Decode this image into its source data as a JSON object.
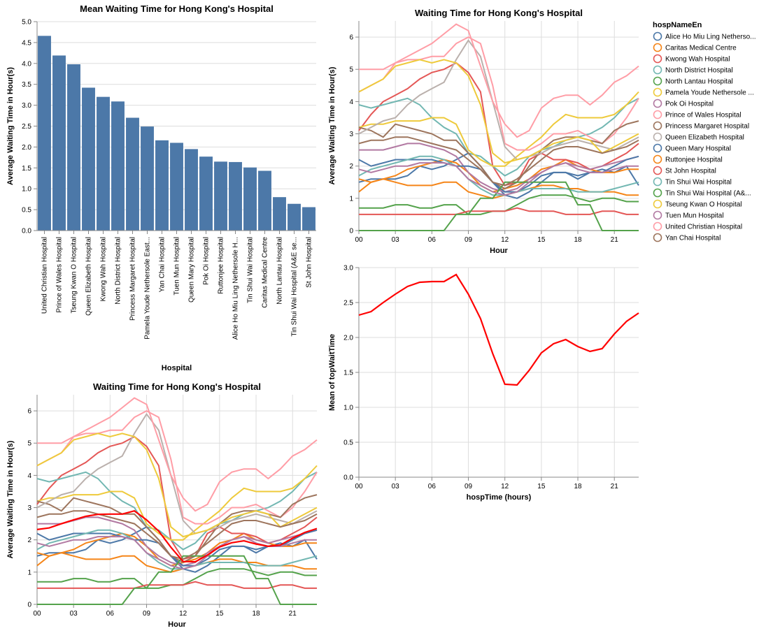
{
  "hospitals": [
    {
      "name": "Alice Ho Miu Ling Netherso...",
      "color": "#4c78a8"
    },
    {
      "name": "Caritas Medical Centre",
      "color": "#f58518"
    },
    {
      "name": "Kwong Wah Hospital",
      "color": "#e45756"
    },
    {
      "name": "North District Hospital",
      "color": "#72b7b2"
    },
    {
      "name": "North Lantau Hospital",
      "color": "#54a24b"
    },
    {
      "name": "Pamela Youde Nethersole ...",
      "color": "#eeca3b"
    },
    {
      "name": "Pok Oi Hospital",
      "color": "#b279a2"
    },
    {
      "name": "Prince of Wales Hospital",
      "color": "#ff9da6"
    },
    {
      "name": "Princess Margaret Hospital",
      "color": "#9d755d"
    },
    {
      "name": "Queen Elizabeth Hospital",
      "color": "#bab0ac"
    },
    {
      "name": "Queen Mary Hospital",
      "color": "#4c78a8"
    },
    {
      "name": "Ruttonjee Hospital",
      "color": "#f58518"
    },
    {
      "name": "St John Hospital",
      "color": "#e45756"
    },
    {
      "name": "Tin Shui Wai Hospital",
      "color": "#72b7b2"
    },
    {
      "name": "Tin Shui Wai Hospital   (A&...",
      "color": "#54a24b"
    },
    {
      "name": "Tseung Kwan O Hospital",
      "color": "#eeca3b"
    },
    {
      "name": "Tuen Mun Hospital",
      "color": "#b279a2"
    },
    {
      "name": "United Christian Hospital",
      "color": "#ff9da6"
    },
    {
      "name": "Yan Chai Hospital",
      "color": "#9d755d"
    }
  ],
  "legend_title": "hospNameEn",
  "mean_line_color": "#ff0000",
  "bar_color": "#4c78a8",
  "chart_data": [
    {
      "type": "bar",
      "title": "Mean Waiting Time for Hong Kong's Hospital",
      "xlabel": "Hospital",
      "ylabel": "Average Waiting Time in Hour(s)",
      "ylim": [
        0,
        5
      ],
      "yticks": [
        "0.0",
        "0.5",
        "1.0",
        "1.5",
        "2.0",
        "2.5",
        "3.0",
        "3.5",
        "4.0",
        "4.5",
        "5.0"
      ],
      "categories": [
        "United Christian Hospital",
        "Prince of Wales Hospital",
        "Tseung Kwan O Hospital",
        "Queen Elizabeth Hospital",
        "Kwong Wah Hospital",
        "North District Hospital",
        "Princess Margaret Hospital",
        "Pamela Youde Nethersole East...",
        "Yan Chai Hospital",
        "Tuen Mun Hospital",
        "Queen Mary Hospital",
        "Pok Oi Hospital",
        "Ruttonjee Hospital",
        "Alice Ho Miu Ling Nethersole H...",
        "Tin Shui Wai Hospital",
        "Caritas Medical Centre",
        "North Lantau Hospital",
        "Tin Shui Wai Hospital   (A&E se...",
        "St John Hospital"
      ],
      "values": [
        4.66,
        4.19,
        3.98,
        3.42,
        3.2,
        3.09,
        2.7,
        2.49,
        2.16,
        2.1,
        1.95,
        1.77,
        1.65,
        1.64,
        1.51,
        1.43,
        0.8,
        0.64,
        0.56
      ]
    },
    {
      "type": "line",
      "title": "Waiting Time for Hong Kong's Hospital",
      "xlabel": "Hour",
      "ylabel": "Average Waiting Time in Hour(s)",
      "xlim": [
        0,
        23
      ],
      "ylim": [
        0,
        6.5
      ],
      "xticks": [
        "00",
        "03",
        "06",
        "09",
        "12",
        "15",
        "18",
        "21"
      ],
      "yticks": [
        "0",
        "1",
        "2",
        "3",
        "4",
        "5",
        "6"
      ],
      "legend": "right",
      "x": [
        0,
        1,
        2,
        3,
        4,
        5,
        6,
        7,
        8,
        9,
        10,
        11,
        12,
        13,
        14,
        15,
        16,
        17,
        18,
        19,
        20,
        21,
        22,
        23
      ],
      "series": [
        {
          "name": "Alice Ho Miu Ling Netherso...",
          "values": [
            1.5,
            1.6,
            1.6,
            1.6,
            1.7,
            2.0,
            1.9,
            2.0,
            2.2,
            2.4,
            2.0,
            1.5,
            1.1,
            1.0,
            1.2,
            1.5,
            1.8,
            1.8,
            1.6,
            1.8,
            1.9,
            1.8,
            2.0,
            1.4
          ]
        },
        {
          "name": "Caritas Medical Centre",
          "values": [
            1.6,
            1.5,
            1.6,
            1.7,
            1.9,
            2.0,
            2.1,
            2.2,
            2.1,
            1.8,
            1.4,
            1.2,
            1.3,
            1.4,
            1.6,
            1.9,
            2.0,
            2.2,
            2.0,
            1.9,
            1.8,
            1.8,
            1.9,
            1.9
          ]
        },
        {
          "name": "Kwong Wah Hospital",
          "values": [
            3.1,
            3.6,
            4.0,
            4.2,
            4.4,
            4.7,
            4.9,
            5.0,
            5.2,
            4.9,
            4.3,
            2.0,
            1.4,
            1.5,
            2.2,
            2.4,
            2.2,
            2.2,
            2.1,
            1.9,
            2.0,
            2.2,
            2.4,
            2.7
          ]
        },
        {
          "name": "North District Hospital",
          "values": [
            3.9,
            3.8,
            3.9,
            4.0,
            4.1,
            3.9,
            3.5,
            3.2,
            3.0,
            2.4,
            2.3,
            2.0,
            1.7,
            1.9,
            2.3,
            2.5,
            2.6,
            2.8,
            2.9,
            3.0,
            3.2,
            3.5,
            3.9,
            4.1
          ]
        },
        {
          "name": "North Lantau Hospital",
          "values": [
            0.7,
            0.7,
            0.7,
            0.8,
            0.8,
            0.7,
            0.7,
            0.8,
            0.8,
            0.5,
            0.5,
            0.6,
            0.6,
            0.8,
            1.0,
            1.1,
            1.1,
            1.1,
            1.0,
            0.9,
            1.0,
            1.0,
            0.9,
            0.9
          ]
        },
        {
          "name": "Pamela Youde Nethersole ...",
          "values": [
            3.2,
            3.3,
            3.3,
            3.4,
            3.4,
            3.4,
            3.5,
            3.5,
            3.3,
            2.5,
            2.2,
            2.0,
            2.0,
            2.3,
            2.6,
            2.9,
            3.3,
            3.6,
            3.5,
            3.5,
            3.5,
            3.6,
            3.9,
            4.3
          ]
        },
        {
          "name": "Pok Oi Hospital",
          "values": [
            2.5,
            2.5,
            2.5,
            2.6,
            2.7,
            2.7,
            2.6,
            2.5,
            2.3,
            1.8,
            1.5,
            1.3,
            1.2,
            1.3,
            1.6,
            1.8,
            2.0,
            2.1,
            2.0,
            1.9,
            2.0,
            2.1,
            2.2,
            2.3
          ]
        },
        {
          "name": "Prince of Wales Hospital",
          "values": [
            4.3,
            4.5,
            4.7,
            5.2,
            5.3,
            5.3,
            5.4,
            5.4,
            5.8,
            6.0,
            5.8,
            4.5,
            2.7,
            2.5,
            2.5,
            2.7,
            3.0,
            3.0,
            3.1,
            2.9,
            2.7,
            3.0,
            3.5,
            4.1
          ]
        },
        {
          "name": "Princess Margaret Hospital",
          "values": [
            3.2,
            3.1,
            2.9,
            3.3,
            3.2,
            3.1,
            3.0,
            2.8,
            2.8,
            2.4,
            2.0,
            1.5,
            1.3,
            1.5,
            2.0,
            2.5,
            2.8,
            2.9,
            2.9,
            2.8,
            2.7,
            3.1,
            3.3,
            3.4
          ]
        },
        {
          "name": "Queen Elizabeth Hospital",
          "values": [
            3.0,
            3.2,
            3.4,
            3.5,
            3.9,
            4.2,
            4.4,
            4.6,
            5.3,
            5.9,
            5.4,
            4.0,
            2.6,
            2.2,
            2.3,
            2.4,
            2.6,
            2.7,
            2.8,
            2.7,
            2.6,
            2.5,
            2.7,
            2.9
          ]
        },
        {
          "name": "Queen Mary Hospital",
          "values": [
            2.2,
            2.0,
            2.1,
            2.2,
            2.2,
            2.2,
            2.2,
            2.1,
            2.0,
            2.0,
            1.9,
            1.5,
            1.2,
            1.2,
            1.4,
            1.7,
            1.8,
            1.8,
            1.7,
            1.8,
            1.8,
            2.0,
            2.2,
            2.3
          ]
        },
        {
          "name": "Ruttonjee Hospital",
          "values": [
            1.2,
            1.5,
            1.6,
            1.5,
            1.4,
            1.4,
            1.4,
            1.5,
            1.5,
            1.2,
            1.1,
            1.0,
            1.1,
            1.2,
            1.3,
            1.4,
            1.4,
            1.3,
            1.3,
            1.2,
            1.2,
            1.2,
            1.1,
            1.1
          ]
        },
        {
          "name": "St John Hospital",
          "values": [
            0.5,
            0.5,
            0.5,
            0.5,
            0.5,
            0.5,
            0.5,
            0.5,
            0.5,
            0.6,
            0.6,
            0.6,
            0.6,
            0.7,
            0.6,
            0.6,
            0.6,
            0.5,
            0.5,
            0.5,
            0.6,
            0.6,
            0.5,
            0.5
          ]
        },
        {
          "name": "Tin Shui Wai Hospital",
          "values": [
            1.7,
            1.9,
            2.0,
            2.1,
            2.2,
            2.3,
            2.3,
            2.2,
            2.0,
            1.6,
            1.3,
            1.1,
            1.1,
            1.2,
            1.3,
            1.3,
            1.3,
            1.3,
            1.2,
            1.2,
            1.2,
            1.3,
            1.4,
            1.5
          ]
        },
        {
          "name": "Tin Shui Wai Hospital   (A&...",
          "values": [
            0.0,
            0.0,
            0.0,
            0.0,
            0.0,
            0.0,
            0.0,
            0.0,
            0.5,
            0.5,
            1.0,
            1.0,
            1.5,
            1.5,
            1.5,
            1.5,
            1.5,
            1.5,
            0.8,
            0.8,
            0.0,
            0.0,
            0.0,
            0.0
          ]
        },
        {
          "name": "Tseung Kwan O Hospital",
          "values": [
            4.3,
            4.5,
            4.7,
            5.1,
            5.2,
            5.3,
            5.2,
            5.3,
            5.2,
            4.8,
            3.9,
            2.4,
            2.1,
            2.2,
            2.3,
            2.5,
            2.7,
            2.8,
            2.9,
            2.8,
            2.4,
            2.6,
            2.8,
            3.0
          ]
        },
        {
          "name": "Tuen Mun Hospital",
          "values": [
            1.9,
            1.8,
            1.9,
            2.0,
            2.0,
            2.1,
            2.1,
            2.1,
            2.0,
            1.6,
            1.4,
            1.2,
            1.1,
            1.2,
            1.5,
            1.8,
            2.0,
            2.1,
            1.9,
            1.8,
            1.8,
            1.9,
            2.0,
            2.0
          ]
        },
        {
          "name": "United Christian Hospital",
          "values": [
            5.0,
            5.0,
            5.0,
            5.2,
            5.4,
            5.6,
            5.8,
            6.1,
            6.4,
            6.2,
            5.1,
            4.0,
            3.3,
            2.9,
            3.1,
            3.8,
            4.1,
            4.2,
            4.2,
            3.9,
            4.2,
            4.6,
            4.8,
            5.1
          ]
        },
        {
          "name": "Yan Chai Hospital",
          "values": [
            2.7,
            2.8,
            2.8,
            2.9,
            2.9,
            2.8,
            2.7,
            2.6,
            2.5,
            2.2,
            1.9,
            1.5,
            1.4,
            1.6,
            1.9,
            2.2,
            2.5,
            2.6,
            2.6,
            2.5,
            2.4,
            2.5,
            2.6,
            2.8
          ]
        }
      ]
    },
    {
      "type": "line",
      "xlabel": "hospTime (hours)",
      "ylabel": "Mean of topWaitTime",
      "xlim": [
        0,
        23
      ],
      "ylim": [
        0,
        3
      ],
      "xticks": [
        "00",
        "03",
        "06",
        "09",
        "12",
        "15",
        "18",
        "21"
      ],
      "yticks": [
        "0.0",
        "0.5",
        "1.0",
        "1.5",
        "2.0",
        "2.5",
        "3.0"
      ],
      "x": [
        0,
        1,
        2,
        3,
        4,
        5,
        6,
        7,
        8,
        9,
        10,
        11,
        12,
        13,
        14,
        15,
        16,
        17,
        18,
        19,
        20,
        21,
        22,
        23
      ],
      "values": [
        2.32,
        2.37,
        2.5,
        2.62,
        2.73,
        2.79,
        2.8,
        2.8,
        2.9,
        2.62,
        2.27,
        1.77,
        1.33,
        1.32,
        1.53,
        1.78,
        1.91,
        1.97,
        1.87,
        1.8,
        1.84,
        2.05,
        2.23,
        2.35
      ]
    },
    {
      "type": "line",
      "title": "Waiting Time for Hong Kong's Hospital",
      "xlabel": "Hour",
      "ylabel": "Average Waiting Time in Hour(s)",
      "xlim": [
        0,
        23
      ],
      "ylim": [
        0,
        6.5
      ],
      "xticks": [
        "00",
        "03",
        "06",
        "09",
        "12",
        "15",
        "18",
        "21"
      ],
      "yticks": [
        "0",
        "1",
        "2",
        "3",
        "4",
        "5",
        "6"
      ],
      "note_overlay": "Hospital lines from the second chart overlaid with the mean line from the third chart"
    }
  ]
}
